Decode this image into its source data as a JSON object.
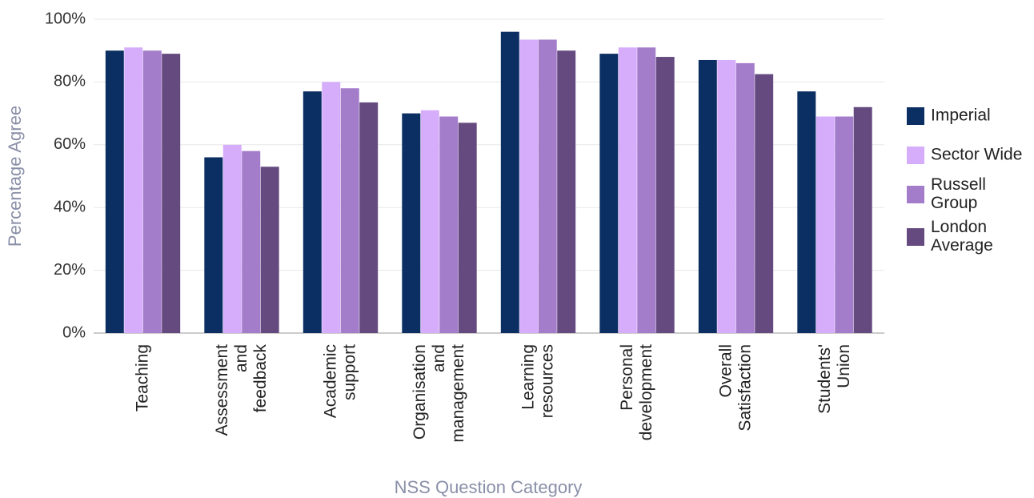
{
  "chart_data": {
    "type": "bar",
    "categories": [
      "Teaching",
      "Assessment and feedback",
      "Academic support",
      "Organisation and management",
      "Learning resources",
      "Personal development",
      "Overall Satisfaction",
      "Students' Union"
    ],
    "series": [
      {
        "name": "Imperial",
        "color": "#0b2f62",
        "values": [
          90,
          56,
          77,
          70,
          96,
          89,
          87,
          77
        ]
      },
      {
        "name": "Sector Wide",
        "color": "#d5adfb",
        "values": [
          91,
          60,
          80,
          71,
          93.5,
          91,
          87,
          69
        ]
      },
      {
        "name": "Russell Group",
        "color": "#a37cca",
        "values": [
          90,
          58,
          78,
          69,
          93.5,
          91,
          86,
          69
        ]
      },
      {
        "name": "London Average",
        "color": "#654a80",
        "values": [
          89,
          53,
          73.5,
          67,
          90,
          88,
          82.5,
          72
        ]
      }
    ],
    "ylim": [
      0,
      100
    ],
    "yticks": [
      {
        "value": 0,
        "label": "0%"
      },
      {
        "value": 20,
        "label": "20%"
      },
      {
        "value": 40,
        "label": "40%"
      },
      {
        "value": 60,
        "label": "60%"
      },
      {
        "value": 80,
        "label": "80%"
      },
      {
        "value": 100,
        "label": "100%"
      }
    ],
    "y_label": "Percentage Agree",
    "x_label": "NSS Question Category",
    "grid": true,
    "legend": "right"
  }
}
